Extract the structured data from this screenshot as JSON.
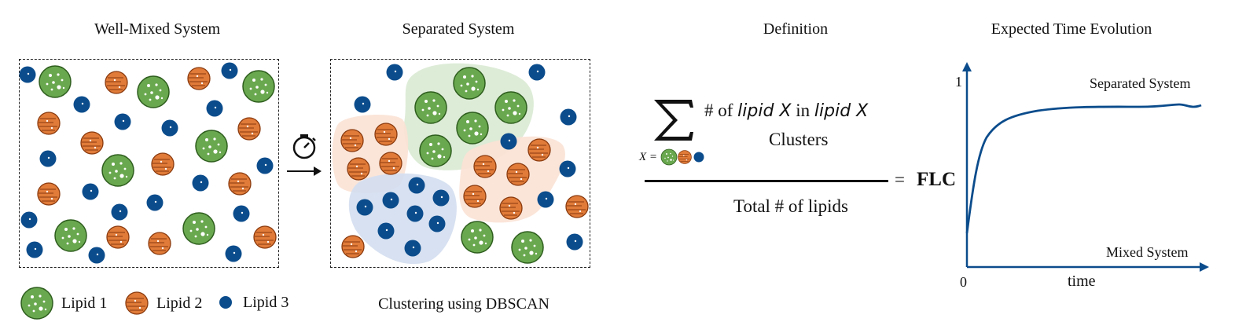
{
  "titles": {
    "well_mixed": "Well-Mixed System",
    "separated": "Separated System",
    "definition": "Definition",
    "time_evolution": "Expected Time Evolution"
  },
  "legend": {
    "lipid1": "Lipid 1",
    "lipid2": "Lipid 2",
    "lipid3": "Lipid 3"
  },
  "caption_clustering": "Clustering using DBSCAN",
  "formula": {
    "numerator_prefix": "# of ",
    "lipid_x": "lipid X",
    "in_word": " in ",
    "clusters": "Clusters",
    "x_equals": "X =",
    "denominator": "Total # of lipids",
    "equals": "=",
    "result": "FLC"
  },
  "plot": {
    "y_tick": "1",
    "x_tick": "0",
    "x_label": "time",
    "upper_label": "Separated System",
    "lower_label": "Mixed System"
  },
  "colors": {
    "lipid1": "#6aa84f",
    "lipid1_stroke": "#2e5e1e",
    "lipid2": "#e07b39",
    "lipid2_stroke": "#8a3a0e",
    "lipid3": "#0b4c8c",
    "curve": "#0b4c8c",
    "cluster_green": "#d9ead3",
    "cluster_orange": "#fbe2d5",
    "cluster_blue": "#d3def0"
  },
  "icons": [
    "stopwatch-icon",
    "arrow-right-icon",
    "sigma-icon"
  ]
}
